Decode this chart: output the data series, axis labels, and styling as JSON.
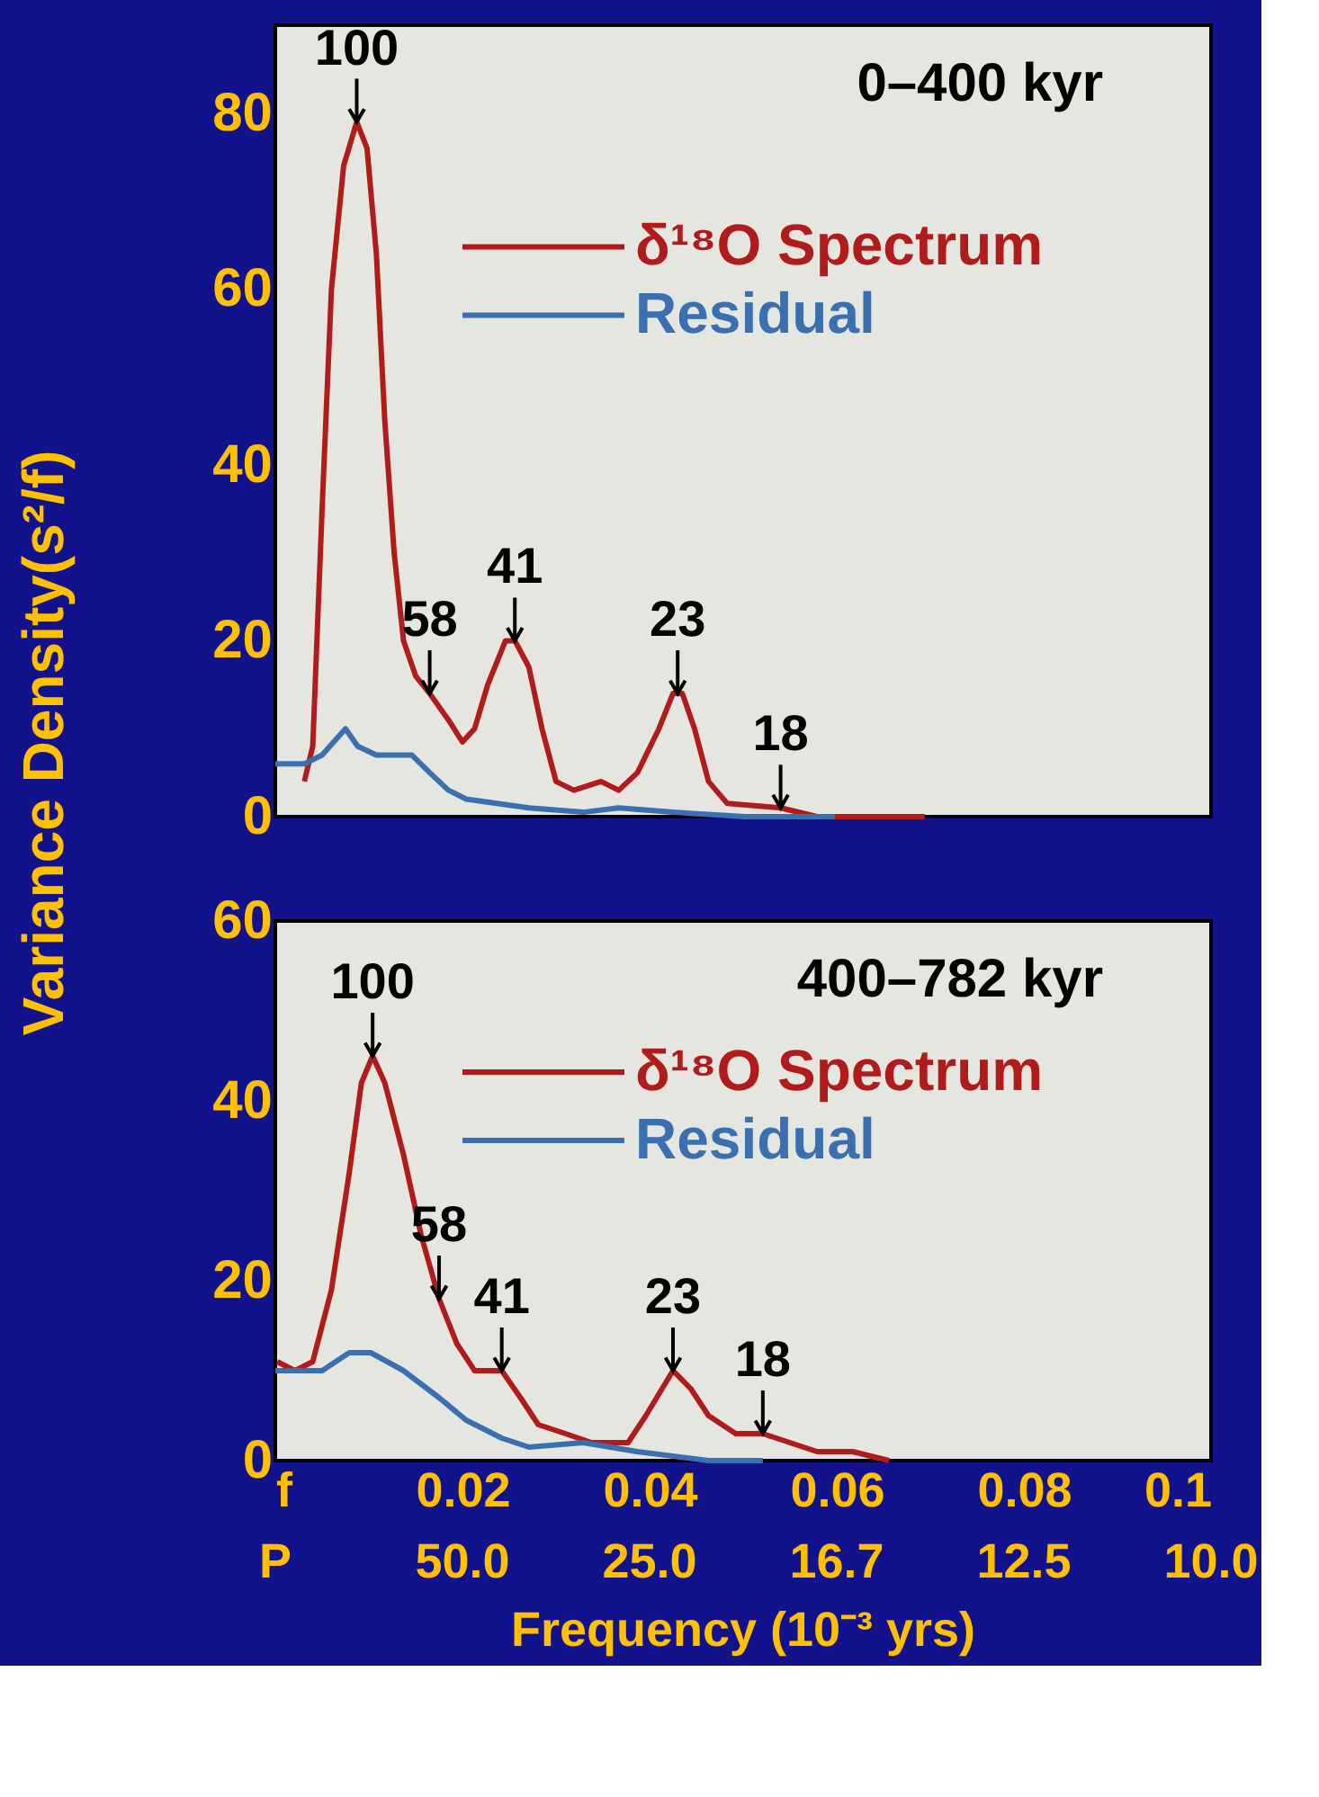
{
  "chart_data": [
    {
      "type": "line",
      "ylabel": "Variance Density(s²/f)",
      "xlim": [
        0,
        0.1
      ],
      "ylim": [
        0,
        90
      ],
      "yticks": [
        0,
        20,
        40,
        60,
        80
      ],
      "xticks": [
        0.02,
        0.04,
        0.06,
        0.08
      ],
      "tick_labels": "y",
      "grid": false,
      "legend": "top right",
      "marker": "none",
      "line_style": "solid",
      "series": [
        {
          "name": "δ¹⁸O Spectrum",
          "color": "#b01c1c",
          "x": [
            0.0031,
            0.004,
            0.005,
            0.006,
            0.0073,
            0.0087,
            0.0098,
            0.0108,
            0.0117,
            0.0127,
            0.0137,
            0.015,
            0.0165,
            0.0185,
            0.02,
            0.0213,
            0.0227,
            0.0246,
            0.0256,
            0.0271,
            0.0285,
            0.03,
            0.0319,
            0.0348,
            0.0367,
            0.0387,
            0.041,
            0.0425,
            0.0435,
            0.0448,
            0.0463,
            0.0483,
            0.054,
            0.0579,
            0.0656,
            0.0694
          ],
          "values": [
            4,
            8,
            35,
            60,
            74,
            79,
            76,
            64,
            45,
            30,
            20,
            16,
            14,
            11,
            8.5,
            10,
            15,
            20,
            20,
            17,
            10,
            4,
            3,
            4,
            3,
            5,
            10,
            14,
            14,
            10,
            4,
            1.5,
            1,
            0,
            0,
            0
          ]
        },
        {
          "name": "Residual",
          "color": "#3a6fb0",
          "x": [
            0,
            0.0031,
            0.005,
            0.0075,
            0.0088,
            0.0108,
            0.0146,
            0.0165,
            0.0185,
            0.0204,
            0.0271,
            0.0329,
            0.0367,
            0.0425,
            0.0502,
            0.0598
          ],
          "values": [
            6,
            6,
            7,
            10,
            8,
            7,
            7,
            5,
            3,
            2,
            1,
            0.5,
            1,
            0.5,
            0,
            0
          ]
        }
      ],
      "annotations": [
        "0–400 kyr",
        {
          "text": "100",
          "x": 0.0087,
          "y": 79
        },
        {
          "text": "58",
          "x": 0.0165,
          "y": 14
        },
        {
          "text": "41",
          "x": 0.0256,
          "y": 20
        },
        {
          "text": "23",
          "x": 0.043,
          "y": 14
        },
        {
          "text": "18",
          "x": 0.054,
          "y": 1
        }
      ]
    },
    {
      "type": "line",
      "xlabel": "Frequency (10⁻³ yrs)",
      "xlim": [
        0,
        0.1
      ],
      "ylim": [
        0,
        60
      ],
      "yticks": [
        0,
        20,
        40,
        60
      ],
      "xticks": [
        {
          "value": 0,
          "label": "f"
        },
        0.02,
        0.04,
        0.06,
        0.08,
        0.1
      ],
      "grid": false,
      "legend": "top right",
      "marker": "none",
      "line_style": "solid",
      "series": [
        {
          "name": "δ¹⁸O Spectrum",
          "color": "#b01c1c",
          "x": [
            0.0002,
            0.0021,
            0.004,
            0.006,
            0.0079,
            0.0092,
            0.0104,
            0.0117,
            0.0137,
            0.0156,
            0.0175,
            0.0194,
            0.0213,
            0.0242,
            0.0262,
            0.0281,
            0.031,
            0.0338,
            0.0377,
            0.0396,
            0.0425,
            0.0444,
            0.0463,
            0.0492,
            0.0521,
            0.055,
            0.0579,
            0.0617,
            0.0656
          ],
          "values": [
            11,
            10,
            11,
            19,
            32,
            42,
            45,
            42,
            34,
            25,
            18,
            13,
            10,
            10,
            7,
            4,
            3,
            2,
            2,
            5,
            10,
            8,
            5,
            3,
            3,
            2,
            1,
            1,
            0
          ]
        },
        {
          "name": "Residual",
          "color": "#3a6fb0",
          "x": [
            0,
            0.005,
            0.0079,
            0.0102,
            0.0137,
            0.0175,
            0.0204,
            0.0242,
            0.0271,
            0.0329,
            0.0387,
            0.0463,
            0.0521
          ],
          "values": [
            10,
            10,
            12,
            12,
            10,
            7,
            4.5,
            2.5,
            1.5,
            2,
            1,
            0,
            0
          ]
        }
      ],
      "annotations": [
        "400–782 kyr",
        "P",
        "50.0",
        "25.0",
        "16.7",
        "12.5",
        "10.0",
        {
          "text": "100",
          "x": 0.0104,
          "y": 45
        },
        {
          "text": "58",
          "x": 0.0175,
          "y": 18
        },
        {
          "text": "41",
          "x": 0.0242,
          "y": 10
        },
        {
          "text": "23",
          "x": 0.0425,
          "y": 10
        },
        {
          "text": "18",
          "x": 0.0521,
          "y": 3
        }
      ]
    }
  ]
}
